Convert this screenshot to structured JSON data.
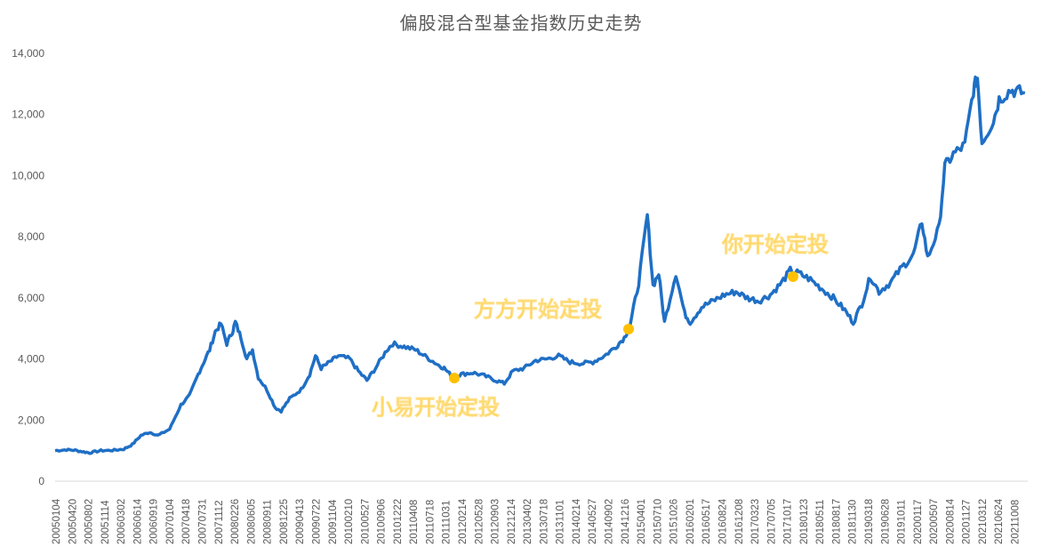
{
  "chart_data": {
    "type": "line",
    "title": "偏股混合型基金指数历史走势",
    "xlabel": "",
    "ylabel": "",
    "ylim": [
      0,
      14000
    ],
    "yticks": [
      "0",
      "2,000",
      "4,000",
      "6,000",
      "8,000",
      "10,000",
      "12,000",
      "14,000"
    ],
    "grid": false,
    "legend": null,
    "line_color": "#1F6FC5",
    "marker_color": "#FFC000",
    "x_tick_labels": [
      "20050104",
      "20050420",
      "20050802",
      "20051114",
      "20060302",
      "20060614",
      "20060919",
      "20070104",
      "20070418",
      "20070731",
      "20071112",
      "20080226",
      "20080605",
      "20080911",
      "20081225",
      "20090413",
      "20090722",
      "20091104",
      "20100210",
      "20100527",
      "20100906",
      "20101222",
      "20110408",
      "20110718",
      "20111031",
      "20120214",
      "20120528",
      "20120903",
      "20121214",
      "20130402",
      "20130718",
      "20131101",
      "20140214",
      "20140527",
      "20140902",
      "20141216",
      "20150401",
      "20150710",
      "20151026",
      "20160201",
      "20160517",
      "20160824",
      "20161208",
      "20170323",
      "20170705",
      "20171017",
      "20180123",
      "20180511",
      "20180817",
      "20181130",
      "20190318",
      "20190628",
      "20191011",
      "20200117",
      "20200507",
      "20200814",
      "20201127",
      "20210312",
      "20210624",
      "20211008"
    ],
    "series": [
      {
        "name": "偏股混合型基金指数",
        "points": [
          [
            "2005.00",
            1000
          ],
          [
            "2005.20",
            1030
          ],
          [
            "2005.35",
            1010
          ],
          [
            "2005.50",
            960
          ],
          [
            "2005.60",
            930
          ],
          [
            "2005.80",
            1000
          ],
          [
            "2006.00",
            1010
          ],
          [
            "2006.20",
            1050
          ],
          [
            "2006.35",
            1200
          ],
          [
            "2006.50",
            1500
          ],
          [
            "2006.65",
            1600
          ],
          [
            "2006.80",
            1500
          ],
          [
            "2007.00",
            1700
          ],
          [
            "2007.20",
            2500
          ],
          [
            "2007.35",
            2800
          ],
          [
            "2007.50",
            3500
          ],
          [
            "2007.60",
            3900
          ],
          [
            "2007.70",
            4300
          ],
          [
            "2007.80",
            4900
          ],
          [
            "2007.90",
            5150
          ],
          [
            "2008.00",
            4500
          ],
          [
            "2008.10",
            4900
          ],
          [
            "2008.15",
            5200
          ],
          [
            "2008.25",
            4700
          ],
          [
            "2008.35",
            4000
          ],
          [
            "2008.45",
            4300
          ],
          [
            "2008.55",
            3400
          ],
          [
            "2008.70",
            3000
          ],
          [
            "2008.85",
            2400
          ],
          [
            "2008.95",
            2300
          ],
          [
            "2009.10",
            2700
          ],
          [
            "2009.30",
            3000
          ],
          [
            "2009.45",
            3500
          ],
          [
            "2009.55",
            4100
          ],
          [
            "2009.65",
            3700
          ],
          [
            "2009.80",
            3900
          ],
          [
            "2009.95",
            4100
          ],
          [
            "2010.15",
            4000
          ],
          [
            "2010.30",
            3600
          ],
          [
            "2010.45",
            3300
          ],
          [
            "2010.60",
            3700
          ],
          [
            "2010.80",
            4300
          ],
          [
            "2010.90",
            4500
          ],
          [
            "2011.10",
            4400
          ],
          [
            "2011.30",
            4300
          ],
          [
            "2011.50",
            4050
          ],
          [
            "2011.70",
            3800
          ],
          [
            "2011.80",
            3700
          ],
          [
            "2011.95",
            3400
          ],
          [
            "2012.10",
            3500
          ],
          [
            "2012.30",
            3550
          ],
          [
            "2012.50",
            3450
          ],
          [
            "2012.70",
            3300
          ],
          [
            "2012.85",
            3200
          ],
          [
            "2013.00",
            3600
          ],
          [
            "2013.20",
            3700
          ],
          [
            "2013.40",
            3950
          ],
          [
            "2013.60",
            4000
          ],
          [
            "2013.80",
            4100
          ],
          [
            "2014.00",
            3900
          ],
          [
            "2014.20",
            3850
          ],
          [
            "2014.40",
            3900
          ],
          [
            "2014.60",
            4100
          ],
          [
            "2014.80",
            4400
          ],
          [
            "2014.95",
            4700
          ],
          [
            "2015.05",
            5100
          ],
          [
            "2015.20",
            6500
          ],
          [
            "2015.35",
            8700
          ],
          [
            "2015.45",
            6400
          ],
          [
            "2015.55",
            6800
          ],
          [
            "2015.65",
            5200
          ],
          [
            "2015.85",
            6800
          ],
          [
            "2016.00",
            5500
          ],
          [
            "2016.10",
            5200
          ],
          [
            "2016.30",
            5700
          ],
          [
            "2016.50",
            5900
          ],
          [
            "2016.70",
            6100
          ],
          [
            "2016.90",
            6200
          ],
          [
            "2017.10",
            6000
          ],
          [
            "2017.30",
            5900
          ],
          [
            "2017.50",
            6100
          ],
          [
            "2017.70",
            6500
          ],
          [
            "2017.85",
            6900
          ],
          [
            "2018.00",
            6800
          ],
          [
            "2018.20",
            6600
          ],
          [
            "2018.40",
            6300
          ],
          [
            "2018.60",
            6000
          ],
          [
            "2018.80",
            5600
          ],
          [
            "2018.95",
            5200
          ],
          [
            "2019.10",
            5800
          ],
          [
            "2019.25",
            6700
          ],
          [
            "2019.40",
            6200
          ],
          [
            "2019.60",
            6500
          ],
          [
            "2019.80",
            7000
          ],
          [
            "2020.00",
            7400
          ],
          [
            "2020.15",
            8500
          ],
          [
            "2020.25",
            7300
          ],
          [
            "2020.45",
            8300
          ],
          [
            "2020.55",
            10300
          ],
          [
            "2020.70",
            10700
          ],
          [
            "2020.90",
            11000
          ],
          [
            "2021.05",
            12800
          ],
          [
            "2021.12",
            13200
          ],
          [
            "2021.20",
            11100
          ],
          [
            "2021.40",
            11800
          ],
          [
            "2021.50",
            12500
          ],
          [
            "2021.70",
            12800
          ],
          [
            "2021.95",
            12700
          ]
        ]
      }
    ],
    "annotations": [
      {
        "text": "小易开始定投",
        "date": "2011-12",
        "value": 3450
      },
      {
        "text": "方方开始定投",
        "date": "2015-01",
        "value": 5000
      },
      {
        "text": "你开始定投",
        "date": "2017-12",
        "value": 6750
      }
    ]
  },
  "title": "偏股混合型基金指数历史走势"
}
